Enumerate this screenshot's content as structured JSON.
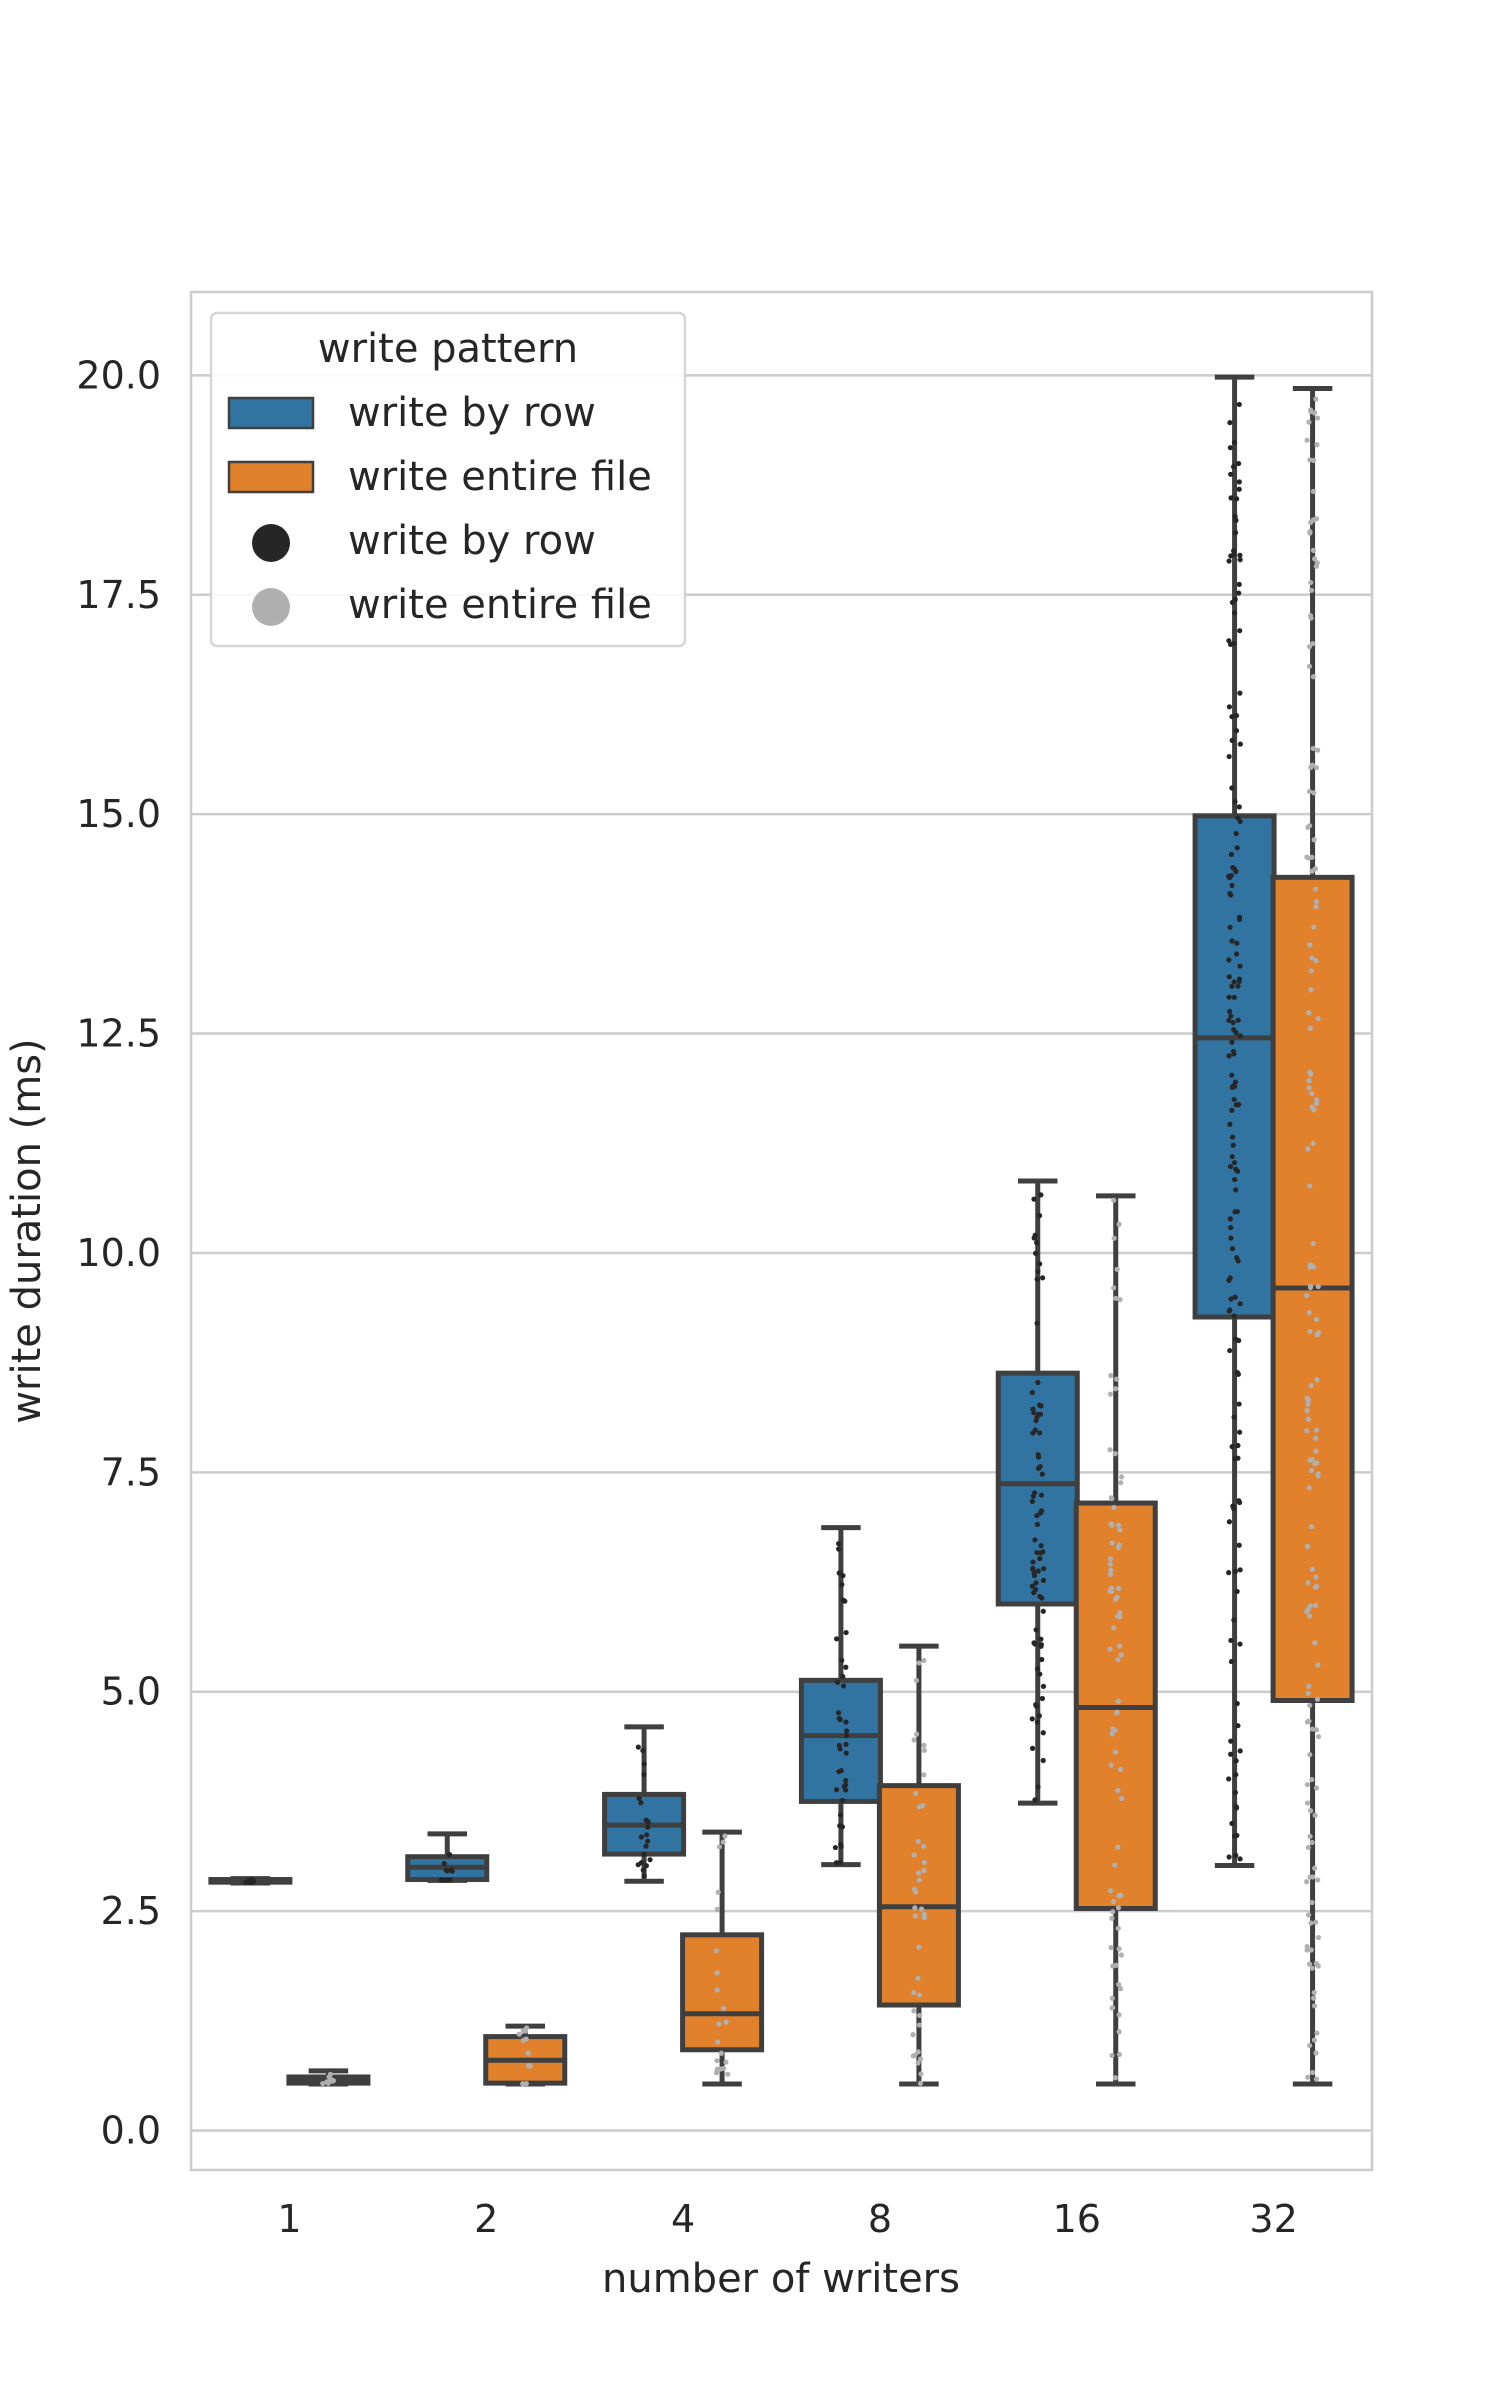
{
  "chart_data": {
    "type": "box",
    "xlabel": "number of writers",
    "ylabel": "write duration (ms)",
    "ylim": [
      -0.45,
      20.95
    ],
    "yticks": [
      "0.0",
      "2.5",
      "5.0",
      "7.5",
      "10.0",
      "12.5",
      "15.0",
      "17.5",
      "20.0"
    ],
    "categories": [
      "1",
      "2",
      "4",
      "8",
      "16",
      "32"
    ],
    "grid": true,
    "legend": {
      "title": "write pattern",
      "placement": "top-left",
      "entries": [
        {
          "label": "write by row",
          "kind": "patch",
          "color": "#3274a1"
        },
        {
          "label": "write entire file",
          "kind": "patch",
          "color": "#e1812c"
        },
        {
          "label": "write by row",
          "kind": "dot",
          "color": "#262626"
        },
        {
          "label": "write entire file",
          "kind": "dot",
          "color": "#b0b0b0"
        }
      ]
    },
    "series": [
      {
        "name": "write by row",
        "color": "#3274a1",
        "point_color": "#262626",
        "boxes": [
          {
            "category": "1",
            "whislo": 2.82,
            "q1": 2.83,
            "med": 2.84,
            "q3": 2.86,
            "whishi": 2.87
          },
          {
            "category": "2",
            "whislo": 2.85,
            "q1": 2.86,
            "med": 3.0,
            "q3": 3.12,
            "whishi": 3.38
          },
          {
            "category": "4",
            "whislo": 2.84,
            "q1": 3.15,
            "med": 3.48,
            "q3": 3.83,
            "whishi": 4.6
          },
          {
            "category": "8",
            "whislo": 3.03,
            "q1": 3.75,
            "med": 4.5,
            "q3": 5.13,
            "whishi": 6.87
          },
          {
            "category": "16",
            "whislo": 3.73,
            "q1": 6.0,
            "med": 7.37,
            "q3": 8.63,
            "whishi": 10.82
          },
          {
            "category": "32",
            "whislo": 3.02,
            "q1": 9.27,
            "med": 12.45,
            "q3": 14.98,
            "whishi": 19.98
          }
        ]
      },
      {
        "name": "write entire file",
        "color": "#e1812c",
        "point_color": "#b0b0b0",
        "boxes": [
          {
            "category": "1",
            "whislo": 0.53,
            "q1": 0.54,
            "med": 0.56,
            "q3": 0.61,
            "whishi": 0.68
          },
          {
            "category": "2",
            "whislo": 0.53,
            "q1": 0.54,
            "med": 0.8,
            "q3": 1.07,
            "whishi": 1.19
          },
          {
            "category": "4",
            "whislo": 0.53,
            "q1": 0.92,
            "med": 1.33,
            "q3": 2.23,
            "whishi": 3.4
          },
          {
            "category": "8",
            "whislo": 0.53,
            "q1": 1.43,
            "med": 2.55,
            "q3": 3.93,
            "whishi": 5.52
          },
          {
            "category": "16",
            "whislo": 0.53,
            "q1": 2.53,
            "med": 4.82,
            "q3": 7.15,
            "whishi": 10.65
          },
          {
            "category": "32",
            "whislo": 0.53,
            "q1": 4.9,
            "med": 9.6,
            "q3": 14.28,
            "whishi": 19.85
          }
        ]
      }
    ]
  }
}
